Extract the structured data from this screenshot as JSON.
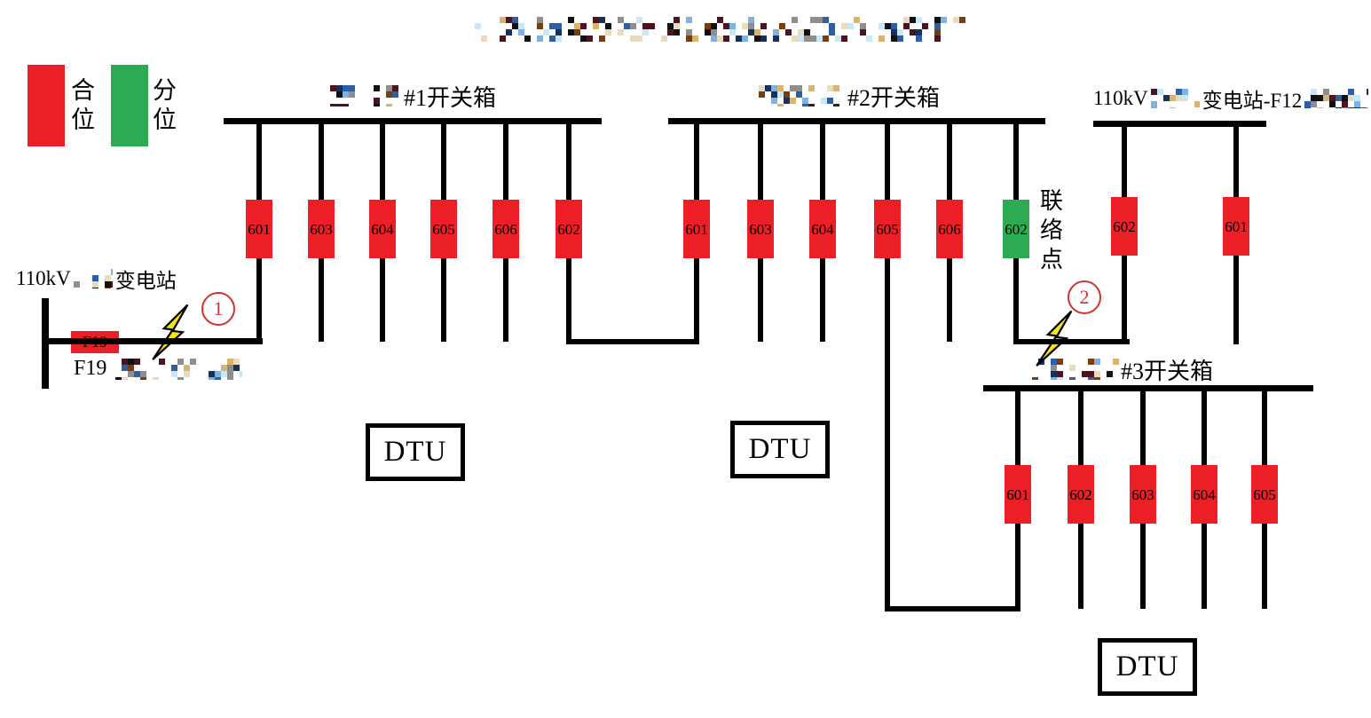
{
  "title": {
    "redacted": true
  },
  "legend": {
    "closed_label": "合\n位",
    "open_label": "分\n位",
    "closed_color": "#ec1f26",
    "open_color": "#2cab52"
  },
  "substation_left": {
    "name_prefix": "110kV",
    "name_redacted_mid": true,
    "name_suffix": "变电站",
    "feeder_switch": "F19",
    "feeder_label_prefix": "F19",
    "feeder_label_redacted": true
  },
  "substation_right": {
    "name_prefix": "110kV",
    "name_redacted_mid": true,
    "name_suffix": "变电站-F12",
    "name_redacted_end": true
  },
  "switch_boxes": [
    {
      "label_redacted_prefix": true,
      "label": "#1开关箱",
      "switches": [
        {
          "id": "601",
          "state": "closed"
        },
        {
          "id": "603",
          "state": "closed"
        },
        {
          "id": "604",
          "state": "closed"
        },
        {
          "id": "605",
          "state": "closed"
        },
        {
          "id": "606",
          "state": "closed"
        },
        {
          "id": "602",
          "state": "closed"
        }
      ]
    },
    {
      "label_redacted_prefix": true,
      "label": "#2开关箱",
      "tie_point_label": "联\n络\n点",
      "switches": [
        {
          "id": "601",
          "state": "closed"
        },
        {
          "id": "603",
          "state": "closed"
        },
        {
          "id": "604",
          "state": "closed"
        },
        {
          "id": "605",
          "state": "closed"
        },
        {
          "id": "606",
          "state": "closed"
        },
        {
          "id": "602",
          "state": "open"
        }
      ]
    },
    {
      "label_redacted_prefix": true,
      "label": "#3开关箱",
      "switches": [
        {
          "id": "601",
          "state": "closed"
        },
        {
          "id": "602",
          "state": "closed"
        },
        {
          "id": "603",
          "state": "closed"
        },
        {
          "id": "604",
          "state": "closed"
        },
        {
          "id": "605",
          "state": "closed"
        }
      ]
    }
  ],
  "right_feeder": {
    "switches": [
      {
        "id": "602",
        "state": "closed"
      },
      {
        "id": "601",
        "state": "closed"
      }
    ]
  },
  "dtu": {
    "label": "DTU"
  },
  "fault_markers": [
    {
      "number": "1"
    },
    {
      "number": "2"
    }
  ],
  "marker_color": "#cf3333",
  "bolt_color": "#f3e51a",
  "redaction_palette": [
    "#16325c",
    "#2f5fa3",
    "#7fb2e0",
    "#c9e8f5",
    "#7a3b10",
    "#4a1520",
    "#d9b370",
    "#8e8e8e",
    "#111111",
    "#e8dcc0"
  ]
}
